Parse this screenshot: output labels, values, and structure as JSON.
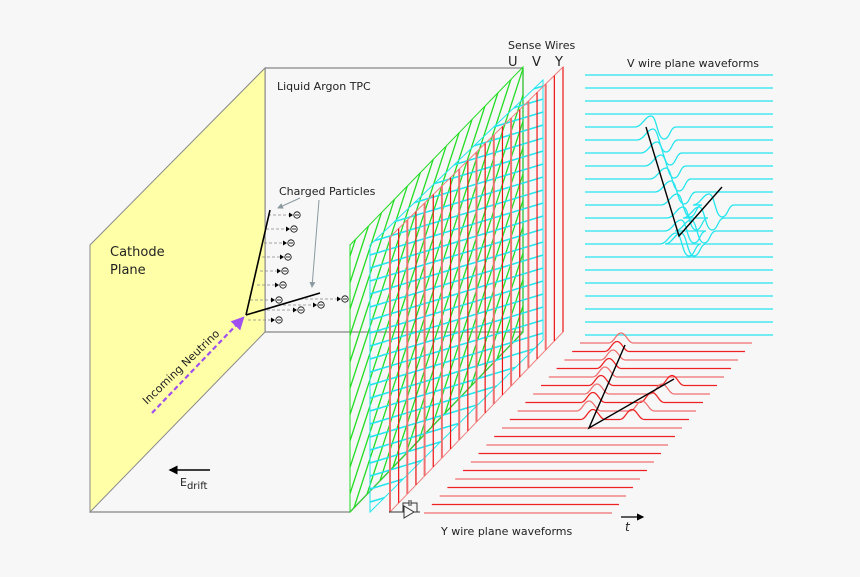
{
  "labels": {
    "cathode_line1": "Cathode",
    "cathode_line2": "Plane",
    "tpc": "Liquid Argon TPC",
    "charged_particles": "Charged Particles",
    "sense_wires": "Sense Wires",
    "plane_u": "U",
    "plane_v": "V",
    "plane_y": "Y",
    "v_waveforms": "V wire plane waveforms",
    "y_waveforms": "Y wire plane waveforms",
    "time_axis": "t",
    "neutrino": "Incoming Neutrino",
    "edrift_main": "E",
    "edrift_sub": "drift"
  },
  "colors": {
    "cathode": "#ffffa8",
    "u_plane": "#22dd22",
    "v_plane": "#22e5ee",
    "y_plane": "#ee2222",
    "neutrino": "#a050ee",
    "track": "#000000"
  }
}
